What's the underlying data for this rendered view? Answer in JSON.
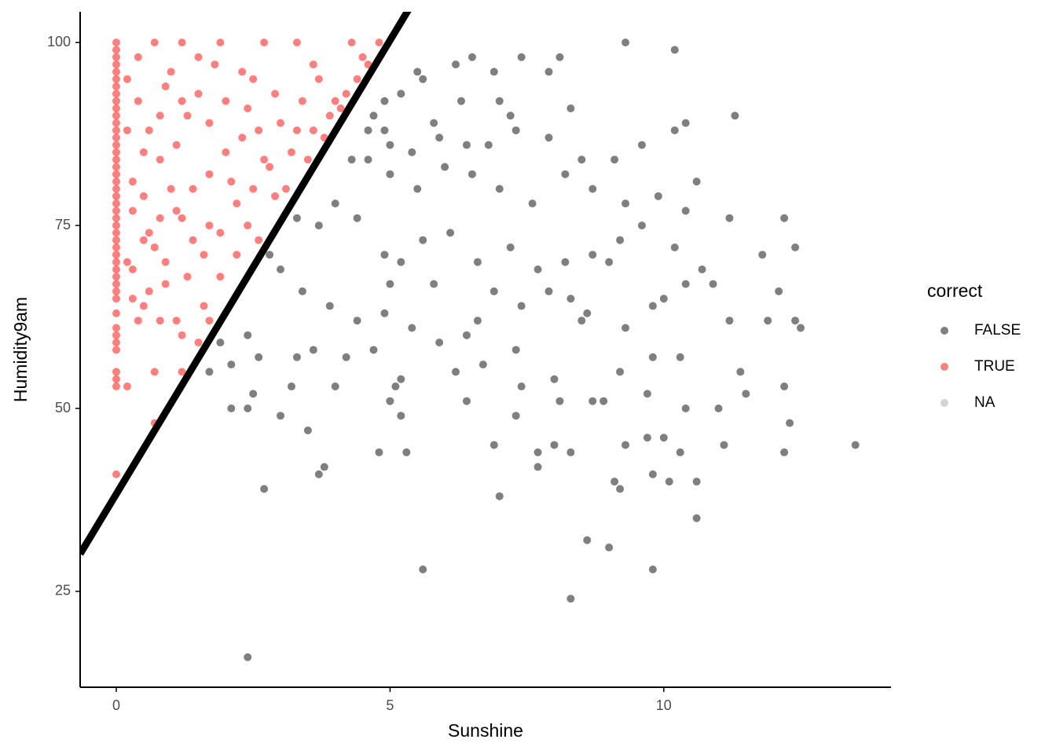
{
  "chart_data": {
    "type": "scatter",
    "x_label": "Sunshine",
    "y_label": "Humidity9am",
    "xlim": [
      -0.66,
      14.15
    ],
    "ylim": [
      11.9,
      104.2
    ],
    "xticks": [
      0,
      5,
      10
    ],
    "yticks": [
      25,
      50,
      75,
      100
    ],
    "grid": false,
    "legend_title": "correct",
    "legend_position": "right",
    "point_opacity": 0.5,
    "abline": {
      "intercept": 38.3,
      "slope": 12.4,
      "color": "#000000"
    },
    "series": [
      {
        "name": "FALSE",
        "color": "#000000",
        "x": [
          2.4,
          8.3,
          5.6,
          9.8,
          9.0,
          8.6,
          10.6,
          2.7,
          9.2,
          7.0,
          3.7,
          3.8,
          9.1,
          9.8,
          10.1,
          10.6,
          7.7,
          7.7,
          8.0,
          8.3,
          4.8,
          5.3,
          9.3,
          9.7,
          10.0,
          10.3,
          11.1,
          12.2,
          13.5,
          6.9,
          3.5,
          12.3,
          2.1,
          2.4,
          3.0,
          5.0,
          5.1,
          5.2,
          7.3,
          6.4,
          8.1,
          8.7,
          8.9,
          9.7,
          10.4,
          11.0,
          11.5,
          12.2,
          2.5,
          3.2,
          4.0,
          1.7,
          2.1,
          2.4,
          2.6,
          1.9,
          3.3,
          3.6,
          4.2,
          4.7,
          5.2,
          6.2,
          6.7,
          7.4,
          8.0,
          9.2,
          9.8,
          10.3,
          11.4,
          12.4,
          12.5,
          11.9,
          11.2,
          10.9,
          10.4,
          10.0,
          9.8,
          9.3,
          8.6,
          8.3,
          7.9,
          7.4,
          6.9,
          6.4,
          5.9,
          5.4,
          4.9,
          4.4,
          3.9,
          3.4,
          3.0,
          2.8,
          3.3,
          3.7,
          4.0,
          4.4,
          4.9,
          5.2,
          5.6,
          6.1,
          6.6,
          7.2,
          7.7,
          8.2,
          8.7,
          9.2,
          9.6,
          10.2,
          10.7,
          11.2,
          11.8,
          12.2,
          12.4,
          12.1,
          10.4,
          9.9,
          9.3,
          8.7,
          8.2,
          7.6,
          7.0,
          6.5,
          6.0,
          5.5,
          5.0,
          4.6,
          4.3,
          4.6,
          5.0,
          5.4,
          5.9,
          6.4,
          6.8,
          7.3,
          7.9,
          8.5,
          9.1,
          9.6,
          10.2,
          10.4,
          11.3,
          10.6,
          4.9,
          5.2,
          5.6,
          6.2,
          6.5,
          6.9,
          7.4,
          7.9,
          8.1,
          9.3,
          10.2,
          5.5,
          4.7,
          7.0,
          8.3,
          7.2,
          6.3,
          5.8,
          4.9,
          9.0,
          8.5,
          7.3,
          6.6,
          5.8,
          5.0
        ],
        "values": [
          16,
          24,
          28,
          28,
          31,
          32,
          35,
          39,
          39,
          38,
          41,
          42,
          40,
          41,
          40,
          40,
          42,
          44,
          45,
          44,
          44,
          44,
          45,
          46,
          46,
          44,
          45,
          44,
          45,
          45,
          47,
          48,
          50,
          50,
          49,
          51,
          53,
          49,
          49,
          51,
          51,
          51,
          51,
          52,
          50,
          50,
          52,
          53,
          52,
          53,
          53,
          55,
          56,
          60,
          57,
          59,
          57,
          58,
          57,
          58,
          54,
          55,
          56,
          53,
          54,
          55,
          57,
          57,
          55,
          62,
          61,
          62,
          62,
          67,
          67,
          65,
          64,
          61,
          63,
          65,
          66,
          64,
          66,
          60,
          59,
          61,
          63,
          62,
          64,
          66,
          69,
          71,
          76,
          75,
          78,
          76,
          71,
          70,
          73,
          74,
          70,
          72,
          69,
          70,
          71,
          73,
          75,
          72,
          69,
          76,
          71,
          76,
          72,
          66,
          77,
          79,
          78,
          80,
          82,
          78,
          80,
          82,
          83,
          80,
          82,
          84,
          84,
          88,
          86,
          85,
          87,
          86,
          86,
          88,
          87,
          84,
          84,
          86,
          88,
          89,
          90,
          81,
          92,
          93,
          95,
          97,
          98,
          96,
          98,
          96,
          98,
          100,
          99,
          96,
          90,
          92,
          91,
          90,
          92,
          89,
          88,
          70,
          62,
          58,
          62,
          67,
          67
        ]
      },
      {
        "name": "TRUE",
        "color": "#ff0000",
        "x": [
          0,
          0,
          0,
          0,
          0,
          0,
          0,
          0,
          0,
          0,
          0,
          0,
          0,
          0,
          0,
          0,
          0,
          0,
          0,
          0,
          0,
          0,
          0,
          0,
          0,
          0,
          0,
          0,
          0,
          0,
          0,
          0,
          0,
          0,
          0,
          0,
          0,
          0,
          0,
          0,
          0,
          0,
          0,
          0,
          0,
          0.2,
          0.2,
          0.3,
          0.4,
          0.5,
          0.7,
          0.7,
          0.9,
          0.6,
          0.3,
          0.5,
          0.8,
          1.0,
          1.2,
          1.5,
          1.8,
          2.3,
          2.7,
          3.3,
          4.3,
          4.8,
          4.6,
          4.4,
          4.0,
          3.6,
          3.2,
          2.8,
          2.5,
          2.2,
          1.9,
          1.6,
          1.3,
          1.2,
          1.5,
          1.7,
          1.2,
          0.2,
          0.4,
          0.6,
          0.8,
          1.0,
          1.2,
          1.4,
          0.3,
          0.5,
          0.7,
          0.9,
          1.1,
          1.3,
          1.5,
          1.7,
          2.0,
          2.4,
          2.6,
          2.9,
          3.0,
          3.4,
          3.7,
          3.9,
          4.1,
          3.8,
          3.5,
          3.1,
          2.7,
          2.3,
          2.0,
          1.7,
          1.4,
          1.1,
          0.8,
          0.5,
          0.3,
          0.2,
          0.4,
          0.7,
          0.9,
          2.1,
          2.4,
          1.9,
          1.6,
          1.1,
          0.8,
          0.6,
          3.3,
          2.9,
          2.6,
          2.2,
          1.7,
          4.2,
          4.5,
          3.6,
          2.5,
          1.9,
          1.2
        ],
        "values": [
          41,
          53,
          54,
          55,
          58,
          59,
          60,
          61,
          63,
          65,
          66,
          67,
          68,
          69,
          70,
          71,
          72,
          73,
          74,
          75,
          76,
          77,
          78,
          79,
          80,
          81,
          82,
          83,
          84,
          85,
          86,
          87,
          88,
          89,
          90,
          91,
          92,
          93,
          94,
          95,
          96,
          97,
          98,
          99,
          100,
          53,
          70,
          65,
          62,
          64,
          55,
          48,
          67,
          74,
          81,
          85,
          90,
          96,
          100,
          98,
          97,
          96,
          100,
          100,
          100,
          100,
          97,
          95,
          92,
          88,
          85,
          83,
          80,
          78,
          74,
          71,
          68,
          60,
          59,
          62,
          55,
          95,
          92,
          88,
          84,
          80,
          76,
          73,
          77,
          79,
          72,
          70,
          86,
          90,
          93,
          89,
          92,
          91,
          88,
          93,
          89,
          92,
          95,
          90,
          91,
          87,
          84,
          80,
          84,
          87,
          85,
          82,
          80,
          77,
          76,
          73,
          69,
          88,
          98,
          100,
          94,
          81,
          75,
          68,
          64,
          62,
          62,
          66,
          88,
          79,
          73,
          71,
          75,
          93,
          98,
          97,
          95,
          100,
          92
        ]
      },
      {
        "name": "NA",
        "color": "#aaaaaa",
        "x": [],
        "values": []
      }
    ]
  }
}
